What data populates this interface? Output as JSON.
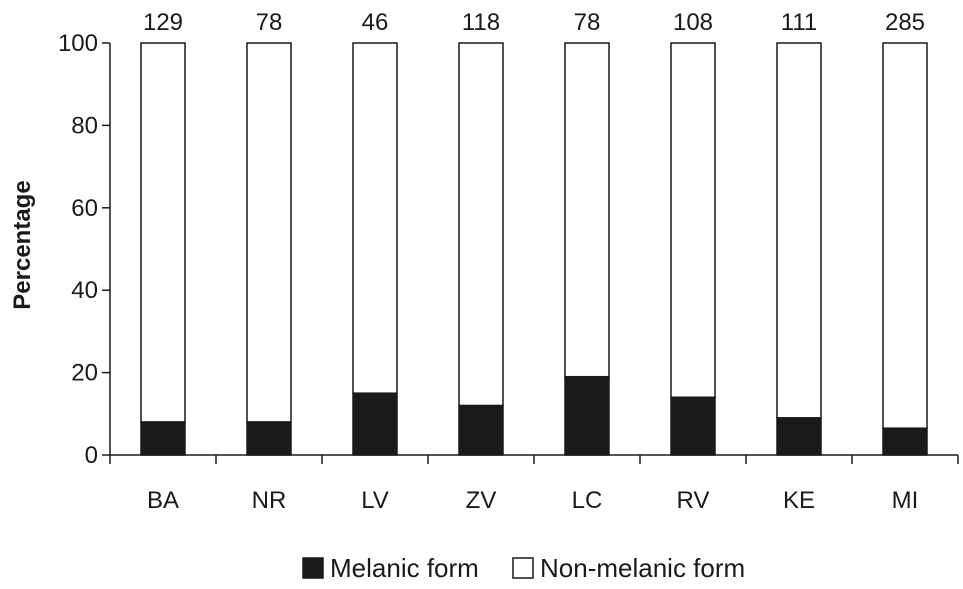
{
  "chart_data": {
    "type": "bar",
    "stacked": true,
    "categories": [
      "BA",
      "NR",
      "LV",
      "ZV",
      "LC",
      "RV",
      "KE",
      "MI"
    ],
    "sample_sizes": [
      "129",
      "78",
      "46",
      "118",
      "78",
      "108",
      "111",
      "285"
    ],
    "series": [
      {
        "name": "Melanic form",
        "values": [
          8,
          8,
          15,
          12,
          19,
          14,
          9,
          6.5
        ],
        "color": "#1a1a1a"
      },
      {
        "name": "Non-melanic form",
        "values": [
          92,
          92,
          85,
          88,
          81,
          86,
          91,
          93.5
        ],
        "color": "#ffffff"
      }
    ],
    "ylabel": "Percentage",
    "ylim": [
      0,
      100
    ],
    "yticks": [
      "0",
      "20",
      "40",
      "60",
      "80",
      "100"
    ],
    "grid": false,
    "legend_position": "bottom-center"
  }
}
